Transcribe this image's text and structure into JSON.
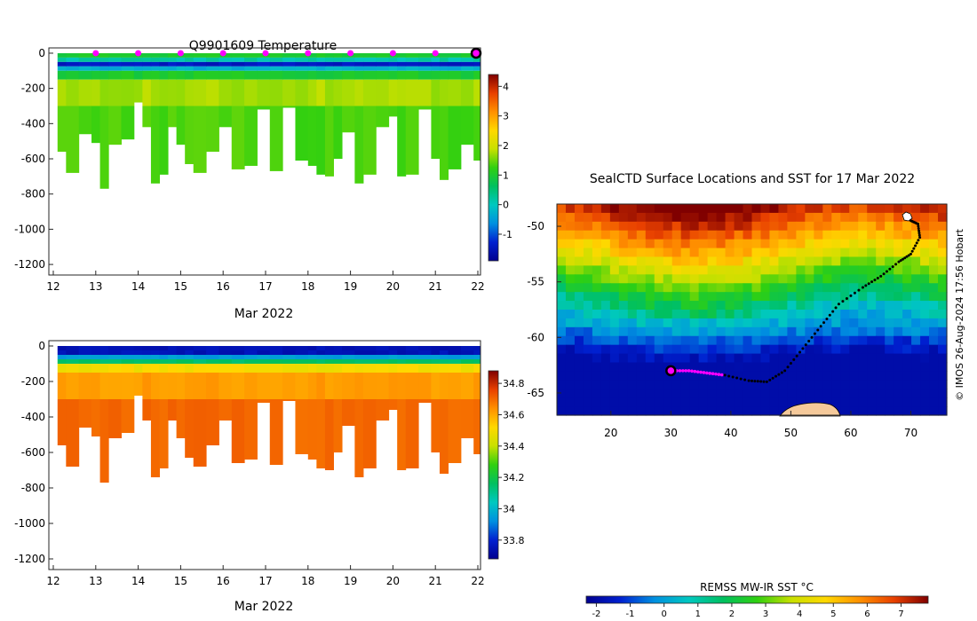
{
  "chart_data": [
    {
      "type": "heatmap",
      "title": "Q9901609  Temperature",
      "xlabel": "Mar 2022",
      "x_ticks": [
        "12",
        "13",
        "14",
        "15",
        "16",
        "17",
        "18",
        "19",
        "20",
        "21",
        "22"
      ],
      "ylim": [
        -1260,
        30
      ],
      "y_ticks": [
        "0",
        "-200",
        "-400",
        "-600",
        "-800",
        "-1000",
        "-1200"
      ],
      "y_tick_values": [
        0,
        -200,
        -400,
        -600,
        -800,
        -1000,
        -1200
      ],
      "colorbar": {
        "range": [
          -1.9,
          4.4
        ],
        "ticks": [
          "-1",
          "0",
          "1",
          "2",
          "3",
          "4"
        ],
        "tick_values": [
          -1,
          0,
          1,
          2,
          3,
          4
        ]
      },
      "marker_days": [
        13,
        14,
        15,
        16,
        17,
        18,
        19,
        20,
        21
      ],
      "current_day": 22,
      "profile_days": [
        12.1,
        12.3,
        12.6,
        12.9,
        13.1,
        13.3,
        13.6,
        13.9,
        14.1,
        14.3,
        14.5,
        14.7,
        14.9,
        15.1,
        15.3,
        15.6,
        15.9,
        16.2,
        16.5,
        16.8,
        17.1,
        17.4,
        17.7,
        18.0,
        18.2,
        18.4,
        18.6,
        18.8,
        19.1,
        19.3,
        19.6,
        19.9,
        20.1,
        20.3,
        20.6,
        20.9,
        21.1,
        21.3,
        21.6,
        21.9
      ],
      "profile_max_depth": [
        560,
        680,
        460,
        510,
        770,
        520,
        490,
        280,
        420,
        740,
        690,
        420,
        520,
        630,
        680,
        560,
        420,
        660,
        640,
        320,
        670,
        310,
        610,
        640,
        690,
        700,
        600,
        450,
        740,
        690,
        420,
        360,
        700,
        690,
        320,
        600,
        720,
        660,
        520,
        610
      ],
      "scale_type": "temperature"
    },
    {
      "type": "heatmap",
      "title": "",
      "xlabel": "Mar 2022",
      "x_ticks": [
        "12",
        "13",
        "14",
        "15",
        "16",
        "17",
        "18",
        "19",
        "20",
        "21",
        "22"
      ],
      "ylim": [
        -1260,
        30
      ],
      "y_ticks": [
        "0",
        "-200",
        "-400",
        "-600",
        "-800",
        "-1000",
        "-1200"
      ],
      "y_tick_values": [
        0,
        -200,
        -400,
        -600,
        -800,
        -1000,
        -1200
      ],
      "colorbar": {
        "range": [
          33.68,
          34.88
        ],
        "ticks": [
          "33.8",
          "34",
          "34.2",
          "34.4",
          "34.6",
          "34.8"
        ],
        "tick_values": [
          33.8,
          34.0,
          34.2,
          34.4,
          34.6,
          34.8
        ]
      },
      "profile_days": [
        12.1,
        12.3,
        12.6,
        12.9,
        13.1,
        13.3,
        13.6,
        13.9,
        14.1,
        14.3,
        14.5,
        14.7,
        14.9,
        15.1,
        15.3,
        15.6,
        15.9,
        16.2,
        16.5,
        16.8,
        17.1,
        17.4,
        17.7,
        18.0,
        18.2,
        18.4,
        18.6,
        18.8,
        19.1,
        19.3,
        19.6,
        19.9,
        20.1,
        20.3,
        20.6,
        20.9,
        21.1,
        21.3,
        21.6,
        21.9
      ],
      "profile_max_depth": [
        560,
        680,
        460,
        510,
        770,
        520,
        490,
        280,
        420,
        740,
        690,
        420,
        520,
        630,
        680,
        560,
        420,
        660,
        640,
        320,
        670,
        310,
        610,
        640,
        690,
        700,
        600,
        450,
        740,
        690,
        420,
        360,
        700,
        690,
        320,
        600,
        720,
        660,
        520,
        610
      ],
      "scale_type": "salinity"
    },
    {
      "type": "heatmap",
      "title": "SealCTD Surface Locations and SST for 17 Mar 2022",
      "xlim": [
        11,
        76
      ],
      "ylim": [
        -67,
        -48
      ],
      "x_ticks": [
        "20",
        "30",
        "40",
        "50",
        "60",
        "70"
      ],
      "x_tick_values": [
        20,
        30,
        40,
        50,
        60,
        70
      ],
      "y_ticks": [
        "-50",
        "-55",
        "-60",
        "-65"
      ],
      "y_tick_values": [
        -50,
        -55,
        -60,
        -65
      ],
      "track": [
        [
          70,
          -49.5
        ],
        [
          71.2,
          -49.8
        ],
        [
          71.5,
          -51
        ],
        [
          70,
          -52.5
        ],
        [
          68,
          -53.2
        ],
        [
          65,
          -54.5
        ],
        [
          62,
          -55.5
        ],
        [
          58,
          -57
        ],
        [
          55,
          -59
        ],
        [
          52,
          -61
        ],
        [
          49,
          -63
        ],
        [
          46,
          -64
        ],
        [
          43,
          -63.9
        ],
        [
          39,
          -63.4
        ],
        [
          36,
          -63.2
        ],
        [
          33,
          -63
        ],
        [
          30,
          -63
        ]
      ],
      "recent_track": [
        [
          30,
          -63
        ],
        [
          33,
          -63
        ],
        [
          36,
          -63.2
        ],
        [
          39,
          -63.4
        ]
      ],
      "current_position": [
        30,
        -63
      ],
      "colorbar": {
        "label": "REMSS MW-IR SST °C",
        "range": [
          -2.3,
          7.8
        ],
        "ticks": [
          "-2",
          "-1",
          "0",
          "1",
          "2",
          "3",
          "4",
          "5",
          "6",
          "7"
        ],
        "tick_values": [
          -2,
          -1,
          0,
          1,
          2,
          3,
          4,
          5,
          6,
          7
        ]
      }
    }
  ],
  "credit": "© IMOS 26-Aug-2024 17:56 Hobart"
}
